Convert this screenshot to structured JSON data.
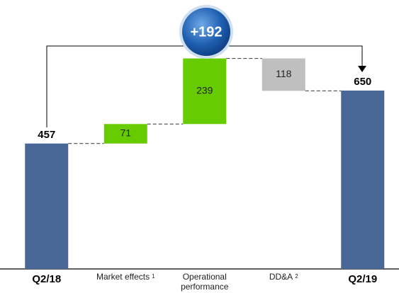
{
  "chart_data": {
    "type": "waterfall",
    "annotation": "+192",
    "categories": [
      "Q2/18",
      "Market effects",
      "Operational performance",
      "DD&A",
      "Q2/19"
    ],
    "footnotes": [
      null,
      "1",
      null,
      "2",
      null
    ],
    "values": [
      457,
      71,
      239,
      -118,
      650
    ],
    "value_labels": [
      "457",
      "71",
      "239",
      "118",
      "650"
    ],
    "colors": [
      "#4a6897",
      "#66cc00",
      "#66cc00",
      "#bfbfbf",
      "#4a6897"
    ],
    "ylim": [
      0,
      980
    ]
  }
}
